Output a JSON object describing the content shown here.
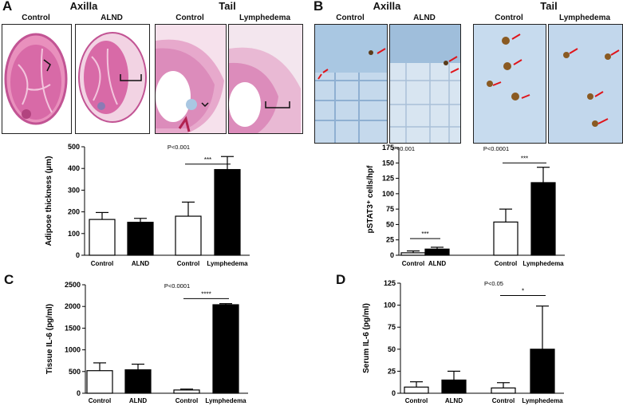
{
  "panel_a": {
    "letter": "A",
    "group_headers": [
      "Axilla",
      "Tail"
    ],
    "image_labels": [
      "Control",
      "ALND",
      "Control",
      "Lymphedema"
    ]
  },
  "panel_b": {
    "letter": "B",
    "group_headers": [
      "Axilla",
      "Tail"
    ],
    "image_labels": [
      "Control",
      "ALND",
      "Control",
      "Lymphedema"
    ]
  },
  "panel_c": {
    "letter": "C"
  },
  "panel_d": {
    "letter": "D"
  },
  "colors": {
    "control_fill": "#ffffff",
    "treated_fill": "#000000",
    "arrow": "#e0141a",
    "he_stain": "#d4609c",
    "ihc_bg": "#a9c7e2"
  },
  "chart_data": [
    {
      "id": "adipose",
      "type": "bar",
      "ylabel": "Adipose thickness (μm)",
      "ylim": [
        0,
        500
      ],
      "yticks": [
        0,
        100,
        200,
        300,
        400,
        500
      ],
      "categories": [
        "Control",
        "ALND",
        "Control",
        "Lymphedema"
      ],
      "values": [
        165,
        152,
        180,
        395
      ],
      "errors": [
        32,
        18,
        65,
        60
      ],
      "fills": [
        "white",
        "black",
        "white",
        "black"
      ],
      "annotations": [
        {
          "text": "P<0.001",
          "anchor_bar": 2
        },
        {
          "text": "***",
          "bars": [
            2,
            3
          ],
          "level": 420
        }
      ]
    },
    {
      "id": "pstat3",
      "type": "bar",
      "ylabel": "pSTAT3⁺ cells/hpf",
      "ylim": [
        0,
        175
      ],
      "yticks": [
        0,
        25,
        50,
        75,
        100,
        125,
        150,
        175
      ],
      "categories": [
        "Control",
        "ALND",
        "Control",
        "Lymphedema"
      ],
      "values": [
        4,
        10,
        54,
        118
      ],
      "errors": [
        3,
        3,
        21,
        25
      ],
      "fills": [
        "white",
        "black",
        "white",
        "black"
      ],
      "annotations": [
        {
          "text": "P<0.001",
          "anchor_bar": 0
        },
        {
          "text": "P<0.0001",
          "anchor_bar": 2
        },
        {
          "text": "***",
          "bars": [
            0,
            1
          ],
          "level": 27
        },
        {
          "text": "***",
          "bars": [
            2,
            3
          ],
          "level": 150
        }
      ]
    },
    {
      "id": "tissue_il6",
      "type": "bar",
      "ylabel": "Tissue IL-6 (pg/ml)",
      "ylim": [
        0,
        2500
      ],
      "yticks": [
        0,
        500,
        1000,
        1500,
        2000,
        2500
      ],
      "categories": [
        "Control",
        "ALND",
        "Control",
        "Lymphedema"
      ],
      "values": [
        520,
        540,
        75,
        2040
      ],
      "errors": [
        180,
        130,
        20,
        25
      ],
      "fills": [
        "white",
        "black",
        "white",
        "black"
      ],
      "annotations": [
        {
          "text": "P<0.0001",
          "anchor_bar": 2
        },
        {
          "text": "****",
          "bars": [
            2,
            3
          ],
          "level": 2180
        }
      ]
    },
    {
      "id": "serum_il6",
      "type": "bar",
      "ylabel": "Serum IL-6 (pg/ml)",
      "ylim": [
        0,
        125
      ],
      "yticks": [
        0,
        25,
        50,
        75,
        100,
        125
      ],
      "categories": [
        "Control",
        "ALND",
        "Control",
        "Lymphedema"
      ],
      "values": [
        7,
        15,
        6,
        50
      ],
      "errors": [
        6,
        10,
        6,
        49
      ],
      "fills": [
        "white",
        "black",
        "white",
        "black"
      ],
      "annotations": [
        {
          "text": "P<0.05",
          "anchor_bar": 2
        },
        {
          "text": "*",
          "bars": [
            2,
            3
          ],
          "level": 111
        }
      ]
    }
  ]
}
